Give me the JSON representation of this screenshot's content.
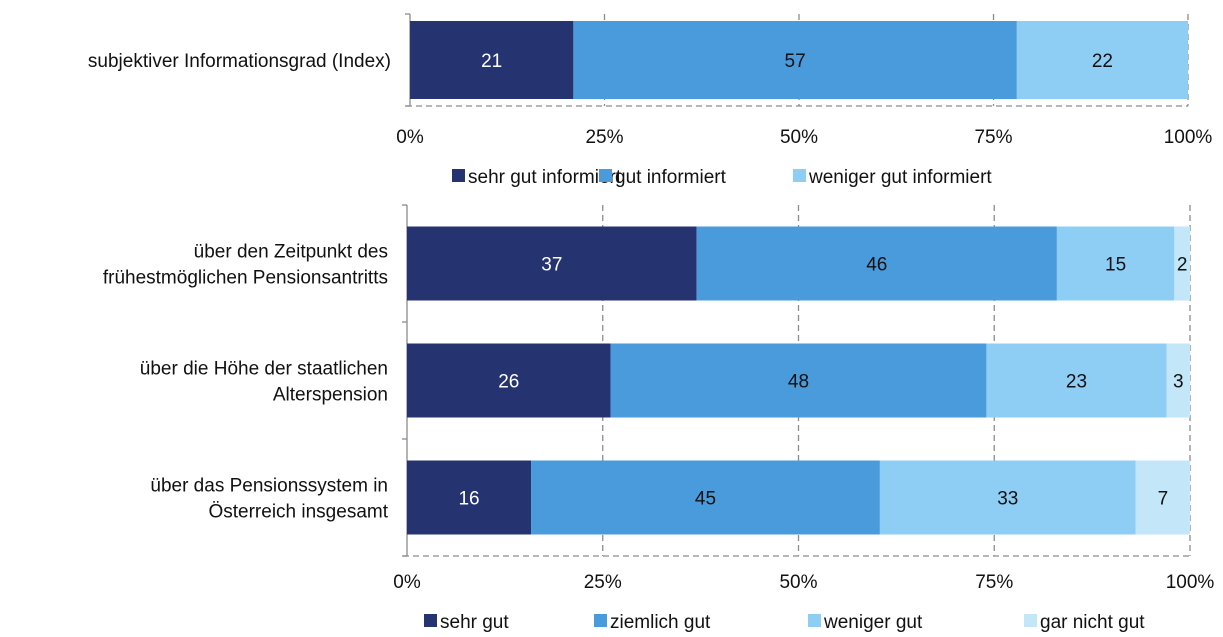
{
  "chart_data": [
    {
      "type": "bar",
      "orientation": "horizontal",
      "stacked": true,
      "percent_scale": true,
      "categories": [
        "subjektiver Informationsgrad (Index)"
      ],
      "series": [
        {
          "name": "sehr gut informiert",
          "values": [
            21
          ],
          "color": "#253370"
        },
        {
          "name": "gut informiert",
          "values": [
            57
          ],
          "color": "#4a9bdb"
        },
        {
          "name": "weniger gut informiert",
          "values": [
            22
          ],
          "color": "#8ecdf4"
        }
      ],
      "xlim": [
        0,
        100
      ],
      "xticks": [
        "0%",
        "25%",
        "50%",
        "75%",
        "100%"
      ],
      "grid": "vertical dashed",
      "legend": "bottom"
    },
    {
      "type": "bar",
      "orientation": "horizontal",
      "stacked": true,
      "percent_scale": true,
      "categories": [
        [
          "über den Zeitpunkt des",
          "frühestmöglichen Pensionsantritts"
        ],
        [
          "über die Höhe der staatlichen",
          "Alterspension"
        ],
        [
          "über das Pensionssystem in",
          "Österreich insgesamt"
        ]
      ],
      "series": [
        {
          "name": "sehr gut",
          "values": [
            37,
            26,
            16
          ],
          "color": "#253370"
        },
        {
          "name": "ziemlich gut",
          "values": [
            46,
            48,
            45
          ],
          "color": "#4a9bdb"
        },
        {
          "name": "weniger gut",
          "values": [
            15,
            23,
            33
          ],
          "color": "#8ecdf4"
        },
        {
          "name": "gar nicht gut",
          "values": [
            2,
            3,
            7
          ],
          "color": "#c4e6f9"
        }
      ],
      "xlim": [
        0,
        100
      ],
      "xticks": [
        "0%",
        "25%",
        "50%",
        "75%",
        "100%"
      ],
      "grid": "vertical dashed",
      "legend": "bottom"
    }
  ]
}
